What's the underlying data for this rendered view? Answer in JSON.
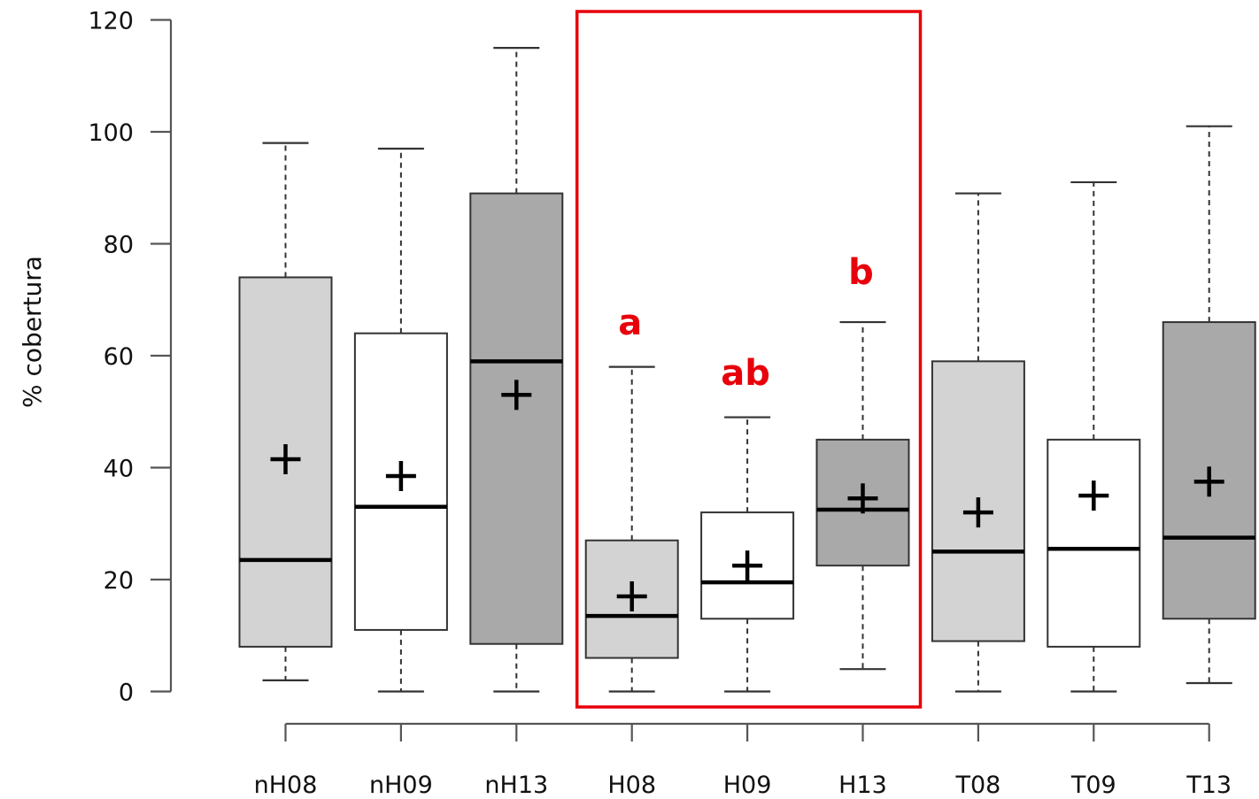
{
  "chart_data": {
    "type": "box",
    "title": "",
    "xlabel": "",
    "ylabel": "% cobertura",
    "ylim": [
      0,
      120
    ],
    "y_ticks": [
      0,
      20,
      40,
      60,
      80,
      100,
      120
    ],
    "grid": false,
    "legend": "none",
    "categories": [
      "nH08",
      "nH09",
      "nH13",
      "H08",
      "H09",
      "H13",
      "T08",
      "T09",
      "T13"
    ],
    "boxes": [
      {
        "label": "nH08",
        "whisker_low": 2,
        "q1": 8,
        "median": 23.5,
        "q3": 74,
        "whisker_high": 98,
        "mean": 41.5,
        "fill": "#d3d3d3"
      },
      {
        "label": "nH09",
        "whisker_low": 0,
        "q1": 11,
        "median": 33,
        "q3": 64,
        "whisker_high": 97,
        "mean": 38.5,
        "fill": "#ffffff"
      },
      {
        "label": "nH13",
        "whisker_low": 0,
        "q1": 8.5,
        "median": 59,
        "q3": 89,
        "whisker_high": 115,
        "mean": 53,
        "fill": "#a9a9a9"
      },
      {
        "label": "H08",
        "whisker_low": 0,
        "q1": 6,
        "median": 13.5,
        "q3": 27,
        "whisker_high": 58,
        "mean": 17,
        "fill": "#d3d3d3"
      },
      {
        "label": "H09",
        "whisker_low": 0,
        "q1": 13,
        "median": 19.5,
        "q3": 32,
        "whisker_high": 49,
        "mean": 22.5,
        "fill": "#ffffff"
      },
      {
        "label": "H13",
        "whisker_low": 4,
        "q1": 22.5,
        "median": 32.5,
        "q3": 45,
        "whisker_high": 66,
        "mean": 34.5,
        "fill": "#a9a9a9"
      },
      {
        "label": "T08",
        "whisker_low": 0,
        "q1": 9,
        "median": 25,
        "q3": 59,
        "whisker_high": 89,
        "mean": 32,
        "fill": "#d3d3d3"
      },
      {
        "label": "T09",
        "whisker_low": 0,
        "q1": 8,
        "median": 25.5,
        "q3": 45,
        "whisker_high": 91,
        "mean": 35,
        "fill": "#ffffff"
      },
      {
        "label": "T13",
        "whisker_low": 1.5,
        "q1": 13,
        "median": 27.5,
        "q3": 66,
        "whisker_high": 101,
        "mean": 37.5,
        "fill": "#a9a9a9"
      }
    ],
    "annotations": [
      {
        "text": "a",
        "category": "H08",
        "y": 66
      },
      {
        "text": "ab",
        "category": "H09",
        "y": 57
      },
      {
        "text": "b",
        "category": "H13",
        "y": 75
      }
    ],
    "highlight": {
      "categories": [
        "H08",
        "H09",
        "H13"
      ],
      "color": "#e8000b"
    },
    "annotation_color": "#e8000b"
  }
}
